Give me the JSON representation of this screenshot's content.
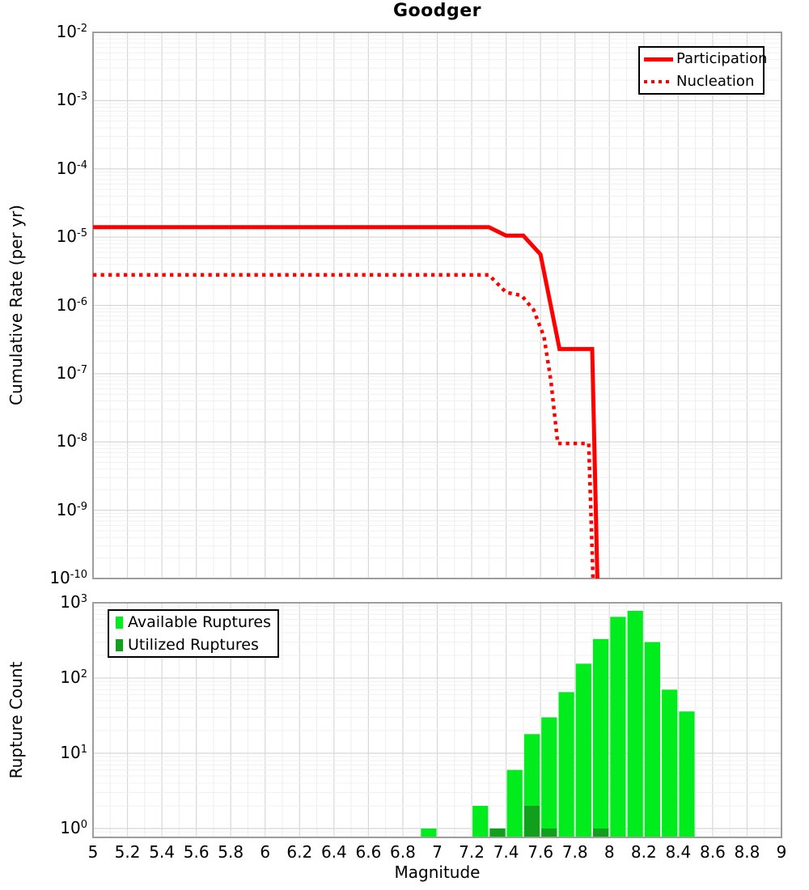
{
  "title": "Goodger",
  "colors": {
    "line_red": "#ff0000",
    "available_green": "#00ec1c",
    "utilized_green": "#11a01b",
    "grid_major": "#d7d7d7",
    "grid_minor": "#f0f0f0",
    "plot_border": "#9e9e9e",
    "legend_border": "#000000",
    "background": "#ffffff"
  },
  "chart_data": [
    {
      "type": "line",
      "title": "Goodger",
      "xlabel": "Magnitude",
      "ylabel": "Cumulative Rate (per yr)",
      "xlim": [
        5,
        9
      ],
      "x_tick_step": 0.2,
      "y_scale": "log",
      "ylim": [
        1e-10,
        0.01
      ],
      "y_tick_exponents": [
        -2,
        -3,
        -4,
        -5,
        -6,
        -7,
        -8,
        -9,
        -10
      ],
      "grid": true,
      "legend_position": "top-right",
      "series": [
        {
          "name": "Participation",
          "color": "#ff0000",
          "style": "solid",
          "points": [
            [
              5.0,
              1.4e-05
            ],
            [
              7.3,
              1.4e-05
            ],
            [
              7.4,
              1.05e-05
            ],
            [
              7.5,
              1.05e-05
            ],
            [
              7.6,
              5.6e-06
            ],
            [
              7.71,
              2.3e-07
            ],
            [
              7.9,
              2.3e-07
            ],
            [
              7.93,
              1e-10
            ]
          ]
        },
        {
          "name": "Nucleation",
          "color": "#ff0000",
          "style": "dotted",
          "points": [
            [
              5.0,
              2.8e-06
            ],
            [
              7.3,
              2.8e-06
            ],
            [
              7.4,
              1.55e-06
            ],
            [
              7.49,
              1.4e-06
            ],
            [
              7.56,
              8.6e-07
            ],
            [
              7.62,
              3.5e-07
            ],
            [
              7.66,
              8e-08
            ],
            [
              7.7,
              9.5e-09
            ],
            [
              7.88,
              9.5e-09
            ],
            [
              7.905,
              1e-10
            ]
          ]
        }
      ]
    },
    {
      "type": "bar",
      "xlabel": "Magnitude",
      "ylabel": "Rupture Count",
      "xlim": [
        5,
        9
      ],
      "x_tick_labels": [
        "5",
        "5.2",
        "5.4",
        "5.6",
        "5.8",
        "6",
        "6.2",
        "6.4",
        "6.6",
        "6.8",
        "7",
        "7.2",
        "7.4",
        "7.6",
        "7.8",
        "8",
        "8.2",
        "8.4",
        "8.6",
        "8.8",
        "9"
      ],
      "y_scale": "log",
      "ylim": [
        1,
        1000
      ],
      "y_tick_exponents": [
        3,
        2,
        1,
        0
      ],
      "bar_width_mag": 0.1,
      "grid": true,
      "legend_position": "top-left",
      "series": [
        {
          "name": "Available Ruptures",
          "color": "#00ec1c",
          "data": [
            [
              6.95,
              1
            ],
            [
              7.25,
              2
            ],
            [
              7.35,
              1
            ],
            [
              7.45,
              6
            ],
            [
              7.55,
              18
            ],
            [
              7.65,
              30
            ],
            [
              7.75,
              65
            ],
            [
              7.85,
              155
            ],
            [
              7.95,
              330
            ],
            [
              8.05,
              650
            ],
            [
              8.15,
              780
            ],
            [
              8.25,
              300
            ],
            [
              8.35,
              70
            ],
            [
              8.45,
              36
            ]
          ]
        },
        {
          "name": "Utilized Ruptures",
          "color": "#11a01b",
          "data": [
            [
              7.35,
              1
            ],
            [
              7.55,
              2
            ],
            [
              7.65,
              1
            ],
            [
              7.95,
              1
            ]
          ]
        }
      ]
    }
  ]
}
